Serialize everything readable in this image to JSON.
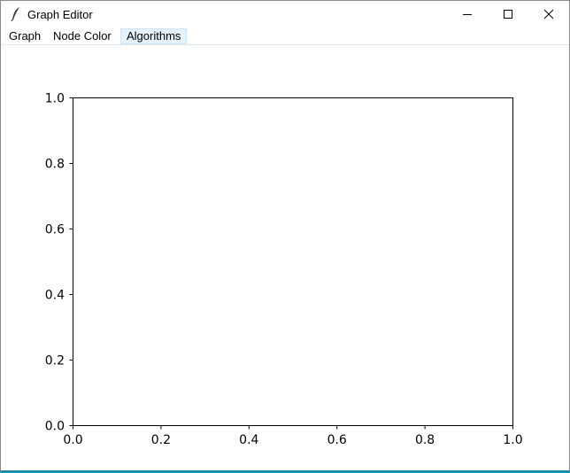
{
  "window": {
    "title": "Graph Editor",
    "icon": "feather-icon"
  },
  "menubar": {
    "items": [
      {
        "label": "Graph"
      },
      {
        "label": "Node Color"
      },
      {
        "label": "Algorithms"
      }
    ]
  },
  "chart_data": {
    "type": "scatter",
    "title": "",
    "xlabel": "",
    "ylabel": "",
    "xlim": [
      0.0,
      1.0
    ],
    "ylim": [
      0.0,
      1.0
    ],
    "x_ticks": [
      "0.0",
      "0.2",
      "0.4",
      "0.6",
      "0.8",
      "1.0"
    ],
    "y_ticks": [
      "0.0",
      "0.2",
      "0.4",
      "0.6",
      "0.8",
      "1.0"
    ],
    "grid": false,
    "series": []
  },
  "colors": {
    "desktop": "#1a9bb5",
    "menu_highlight": "#e5f1fb"
  }
}
